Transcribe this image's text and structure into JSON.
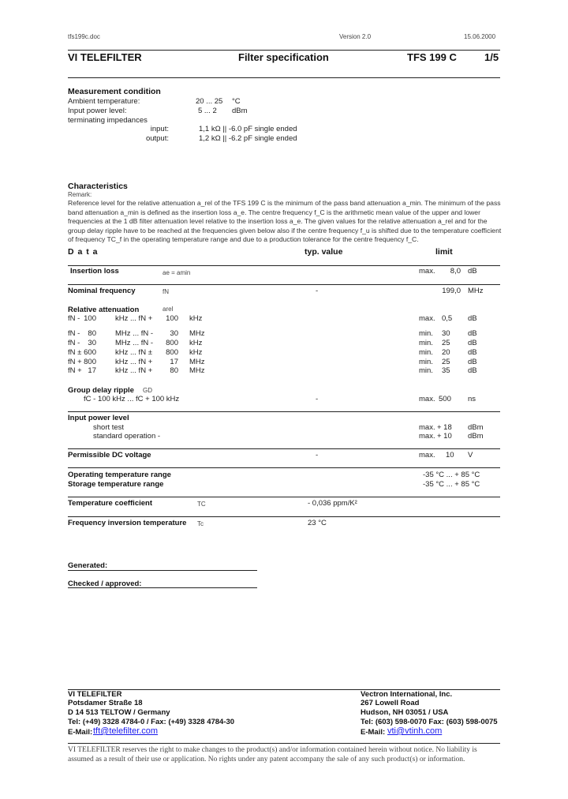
{
  "header": {
    "file": "tfs199c.doc",
    "version": "Version 2.0",
    "date": "15.06.2000",
    "company": "VI  TELEFILTER",
    "doc_title": "Filter specification",
    "product": "TFS  199 C",
    "page": "1/5"
  },
  "measurement": {
    "title": "Measurement condition",
    "rows": [
      {
        "label": "Ambient temperature:",
        "value": "20 ... 25",
        "unit": "°C"
      },
      {
        "label": "Input power level:",
        "value": "5 ... 2",
        "unit": "dBm"
      },
      {
        "label": "terminating impedances",
        "value": "",
        "unit": ""
      },
      {
        "label": "input:",
        "value": "1,1 kΩ || -6.0 pF single ended",
        "unit": ""
      },
      {
        "label": "output:",
        "value": "1,2 kΩ || -6.2 pF single ended",
        "unit": ""
      }
    ]
  },
  "characteristics": {
    "title": "Characteristics",
    "remark_label": "Remark:",
    "remark": "Reference level for the relative attenuation a_rel of the TFS 199 C is the minimum of the pass band attenuation a_min. The minimum of the pass band attenuation a_min is defined as the insertion loss a_e. The centre frequency f_C is the arithmetic mean value of the upper and lower frequencies at the 1 dB filter attenuation level relative to the insertion loss a_e. The given values for the relative attenuation a_rel and for the group delay ripple have to be reached at the frequencies given below also if the centre frequency f_u is shifted due to the temperature coefficient of frequency TC_f in the operating temperature range and due to a production tolerance for the centre frequency f_C."
  },
  "data_table": {
    "col_data": "D a t a",
    "col_typ": "typ. value",
    "col_limit": "limit",
    "insertion_loss": {
      "label": "Insertion loss",
      "symbol": "ae = amin",
      "limit_type": "max.",
      "limit": "8,0",
      "unit": "dB"
    },
    "nominal_freq": {
      "label": "Nominal frequency",
      "symbol": "fN",
      "typ": "-",
      "limit": "199,0",
      "unit": "MHz"
    },
    "rel_att": {
      "label": "Relative attenuation",
      "symbol": "arel",
      "rows": [
        {
          "a": "fN -",
          "b": "100",
          "c": "kHz ... fN +",
          "d": "100",
          "e": "kHz",
          "lt": "max.",
          "lv": "0,5",
          "u": "dB"
        },
        {
          "a": "fN -",
          "b": "80",
          "c": "MHz ... fN -",
          "d": "30",
          "e": "MHz",
          "lt": "min.",
          "lv": "30",
          "u": "dB"
        },
        {
          "a": "fN -",
          "b": "30",
          "c": "MHz ... fN -",
          "d": "800",
          "e": "kHz",
          "lt": "min.",
          "lv": "25",
          "u": "dB"
        },
        {
          "a": "fN ±",
          "b": "600",
          "c": "kHz ... fN ±",
          "d": "800",
          "e": "kHz",
          "lt": "min.",
          "lv": "20",
          "u": "dB"
        },
        {
          "a": "fN +",
          "b": "800",
          "c": "kHz ... fN +",
          "d": "17",
          "e": "MHz",
          "lt": "min.",
          "lv": "25",
          "u": "dB"
        },
        {
          "a": "fN +",
          "b": "17",
          "c": "kHz ... fN +",
          "d": "80",
          "e": "MHz",
          "lt": "min.",
          "lv": "35",
          "u": "dB"
        }
      ]
    },
    "gd": {
      "label": "Group delay ripple",
      "symbol": "GD",
      "range": "fC - 100 kHz ... fC  + 100 kHz",
      "typ": "-",
      "lt": "max.",
      "lv": "500",
      "u": "ns"
    },
    "power": {
      "label": "Input power level",
      "rows": [
        {
          "name": "short test",
          "lt": "max.",
          "lv": "+ 18",
          "u": "dBm"
        },
        {
          "name": "standard operation  -",
          "lt": "max.",
          "lv": "+ 10",
          "u": "dBm"
        }
      ]
    },
    "dc": {
      "label": "Permissible DC voltage",
      "typ": "-",
      "lt": "max.",
      "lv": "10",
      "u": "V"
    },
    "op_temp": {
      "label": "Operating temperature range",
      "limit": "-35 °C ... + 85 °C"
    },
    "st_temp": {
      "label": "Storage temperature range",
      "limit": "-35 °C ... + 85 °C"
    },
    "tc": {
      "label": "Temperature coefficient",
      "symbol": "TC",
      "typ": "- 0,036  ppm/K²"
    },
    "fit": {
      "label": "Frequency inversion temperature",
      "symbol": "Tc",
      "typ": "23 °C"
    }
  },
  "signoff": {
    "generated": "Generated:",
    "checked": "Checked / approved:"
  },
  "footer": {
    "left": [
      "VI TELEFILTER",
      "Potsdamer Straße 18",
      "D 14 513 TELTOW / Germany",
      "Tel: (+49) 3328 4784-0 / Fax: (+49) 3328 4784-30"
    ],
    "left_email_label": "E-Mail:",
    "left_email": "tft@telefilter.com",
    "right": [
      "Vectron International, Inc.",
      "267 Lowell Road",
      "Hudson, NH 03051 / USA",
      "Tel: (603) 598-0070 Fax: (603) 598-0075"
    ],
    "right_email_label": "E-Mail:",
    "right_email": "vti@vtinh.com",
    "disclaimer1": "VI TELEFILTER reserves the right to make changes to the product(s) and/or information contained herein without notice.  No liability is",
    "disclaimer2": "assumed as a result of their use or application.  No rights under any patent accompany the sale of any such product(s) or information."
  }
}
